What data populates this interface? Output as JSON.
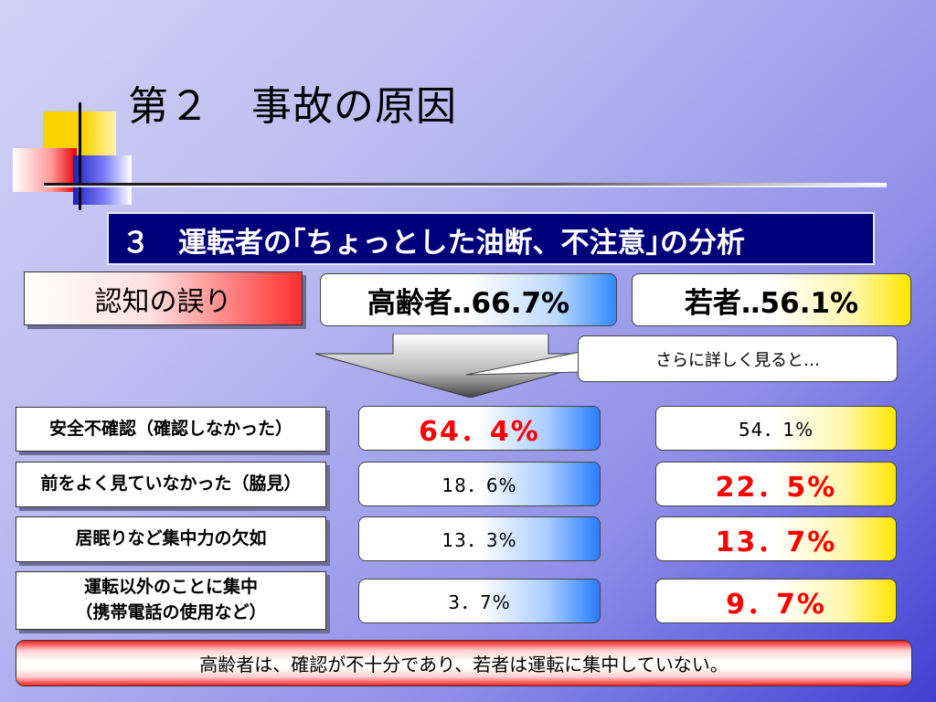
{
  "title": "第２　事故の原因",
  "subtitle": "３　運転者の｢ちょっとした油断、不注意｣の分析",
  "category": "認知の誤り",
  "headers": {
    "elderly": "高齢者‥66.7%",
    "young": "若者‥56.1%"
  },
  "note": "さらに詳しく見ると…",
  "rows": [
    {
      "label": "安全不確認（確認しなかった）",
      "elderly": "64．4%",
      "young": "54．1%"
    },
    {
      "label": "前をよく見ていなかった（脇見）",
      "elderly": "18．6%",
      "young": "22．5%"
    },
    {
      "label": "居眠りなど集中力の欠如",
      "elderly": "13．3%",
      "young": "13．7%"
    },
    {
      "label_line1": "運転以外のことに集中",
      "label_line2": "（携帯電話の使用など）",
      "elderly": "3．7%",
      "young": "9．7%"
    }
  ],
  "conclusion": "高齢者は、確認が不十分であり、若者は運転に集中していない。",
  "colors": {
    "highlight": "#ff0000",
    "subtitle_bg": "#00007a"
  }
}
